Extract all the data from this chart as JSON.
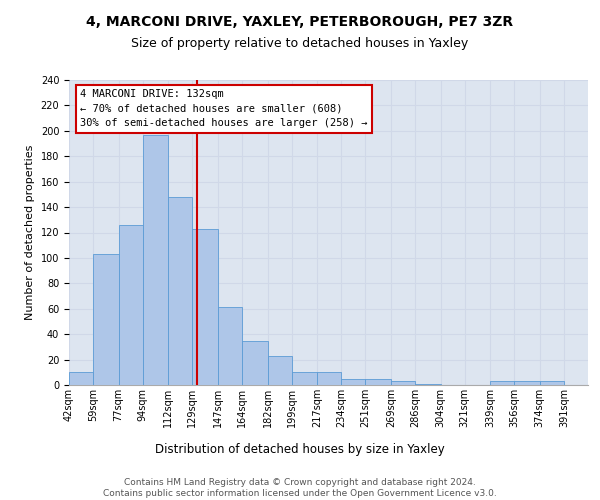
{
  "title": "4, MARCONI DRIVE, YAXLEY, PETERBOROUGH, PE7 3ZR",
  "subtitle": "Size of property relative to detached houses in Yaxley",
  "xlabel": "Distribution of detached houses by size in Yaxley",
  "ylabel": "Number of detached properties",
  "bin_labels": [
    "42sqm",
    "59sqm",
    "77sqm",
    "94sqm",
    "112sqm",
    "129sqm",
    "147sqm",
    "164sqm",
    "182sqm",
    "199sqm",
    "217sqm",
    "234sqm",
    "251sqm",
    "269sqm",
    "286sqm",
    "304sqm",
    "321sqm",
    "339sqm",
    "356sqm",
    "374sqm",
    "391sqm"
  ],
  "bar_heights": [
    10,
    103,
    126,
    197,
    148,
    123,
    61,
    35,
    23,
    10,
    10,
    5,
    5,
    3,
    1,
    0,
    0,
    3,
    3,
    3,
    0
  ],
  "bin_edges": [
    42,
    59,
    77,
    94,
    112,
    129,
    147,
    164,
    182,
    199,
    217,
    234,
    251,
    269,
    286,
    304,
    321,
    339,
    356,
    374,
    391,
    408
  ],
  "bar_color": "#aec6e8",
  "bar_edge_color": "#5b9bd5",
  "vline_x": 132,
  "vline_color": "#cc0000",
  "annotation_line1": "4 MARCONI DRIVE: 132sqm",
  "annotation_line2": "← 70% of detached houses are smaller (608)",
  "annotation_line3": "30% of semi-detached houses are larger (258) →",
  "annotation_box_color": "#ffffff",
  "annotation_box_edge_color": "#cc0000",
  "grid_color": "#d0d8e8",
  "background_color": "#dde5f0",
  "footer_text": "Contains HM Land Registry data © Crown copyright and database right 2024.\nContains public sector information licensed under the Open Government Licence v3.0.",
  "ylim": [
    0,
    240
  ],
  "yticks": [
    0,
    20,
    40,
    60,
    80,
    100,
    120,
    140,
    160,
    180,
    200,
    220,
    240
  ],
  "title_fontsize": 10,
  "subtitle_fontsize": 9,
  "ylabel_fontsize": 8,
  "xlabel_fontsize": 8.5,
  "tick_fontsize": 7,
  "footer_fontsize": 6.5
}
